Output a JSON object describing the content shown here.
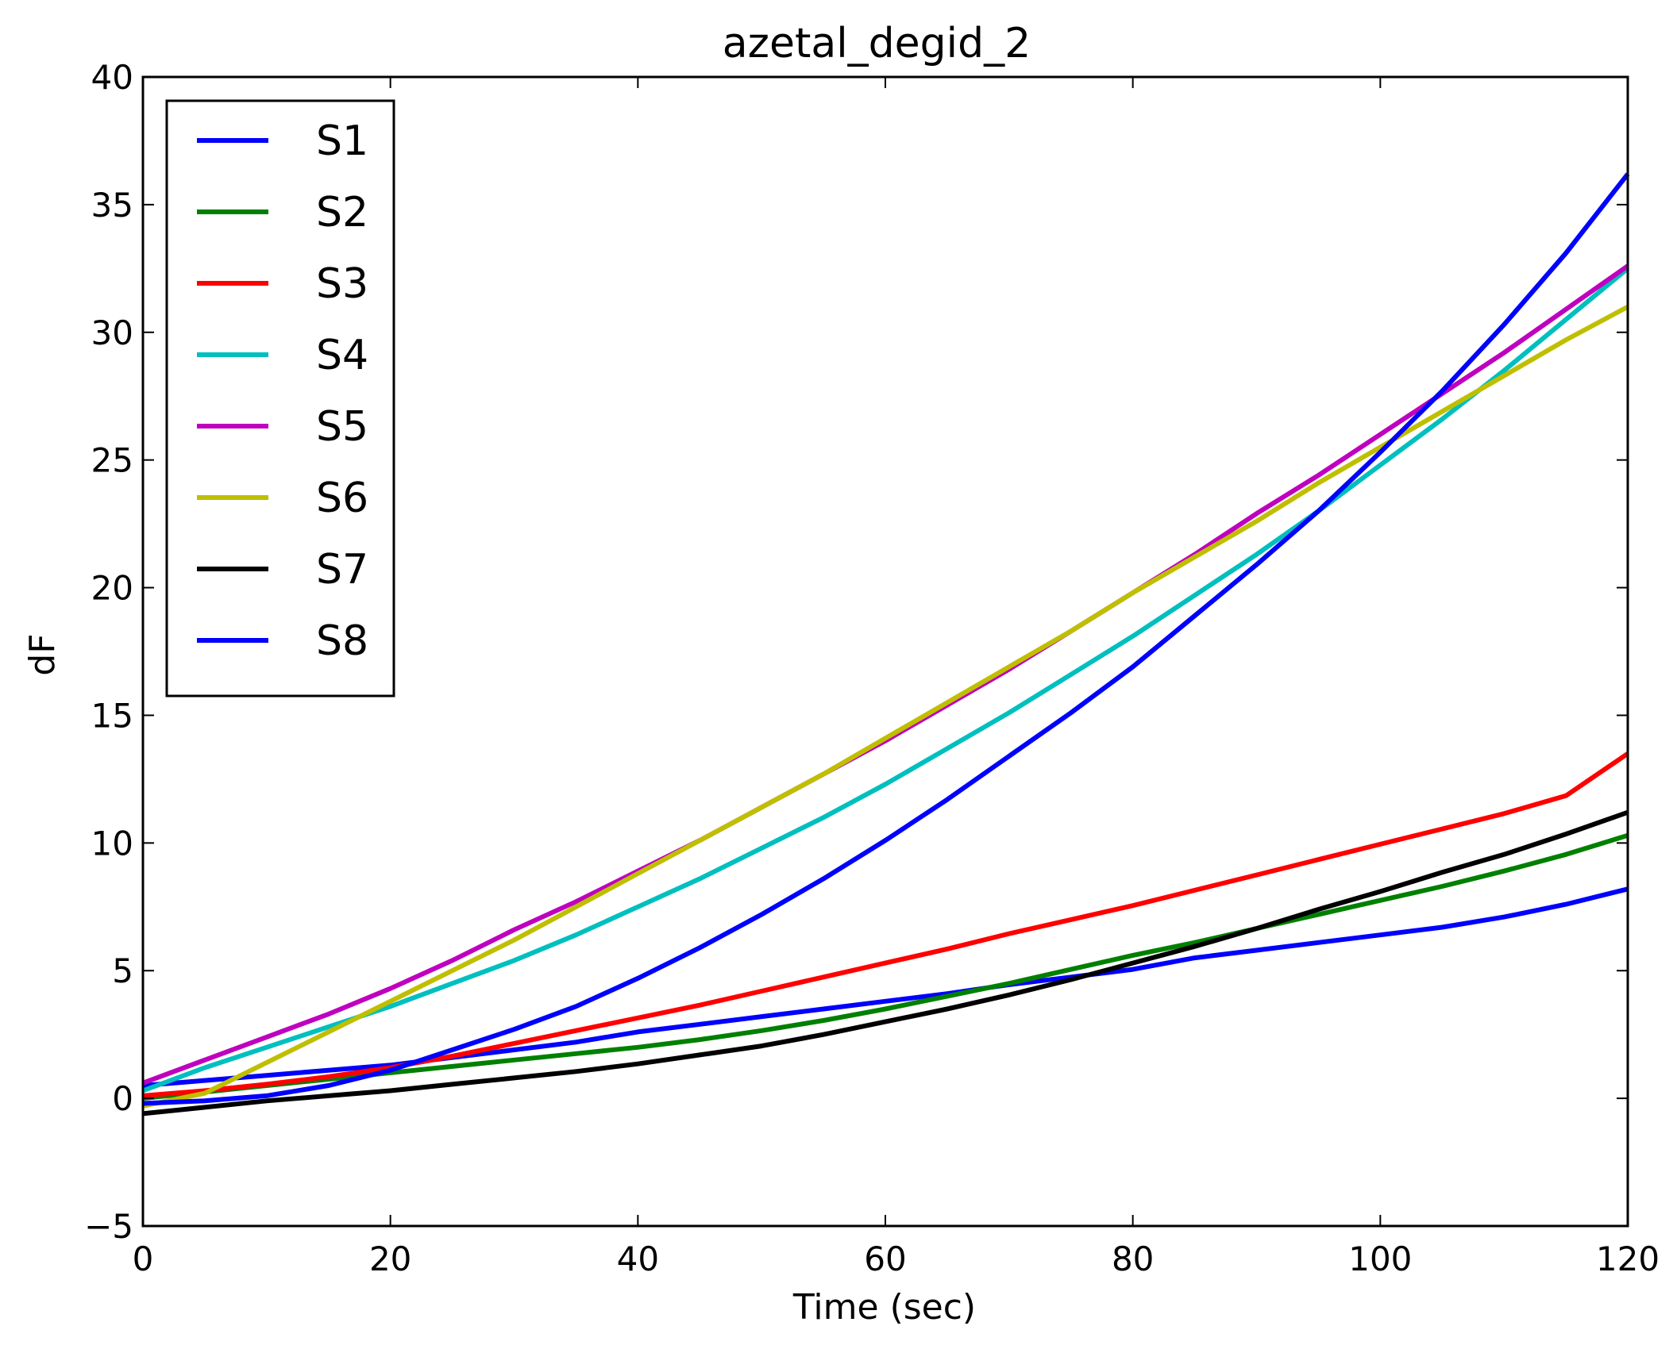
{
  "chart_data": {
    "type": "line",
    "title": "azetal_degid_2",
    "xlabel": "Time (sec)",
    "ylabel": "dF",
    "xlim": [
      0,
      120
    ],
    "ylim": [
      -5,
      40
    ],
    "xticks": [
      0,
      20,
      40,
      60,
      80,
      100,
      120
    ],
    "xtick_labels": [
      "0",
      "20",
      "40",
      "60",
      "80",
      "100",
      "120"
    ],
    "yticks": [
      -5,
      0,
      5,
      10,
      15,
      20,
      25,
      30,
      35,
      40
    ],
    "ytick_labels": [
      "−5",
      "0",
      "5",
      "10",
      "15",
      "20",
      "25",
      "30",
      "35",
      "40"
    ],
    "grid": false,
    "legend_position": "top-left",
    "x": [
      0,
      5,
      10,
      15,
      20,
      25,
      30,
      35,
      40,
      45,
      50,
      55,
      60,
      65,
      70,
      75,
      80,
      85,
      90,
      95,
      100,
      105,
      110,
      115,
      120
    ],
    "series": [
      {
        "name": "S1",
        "color": "#0000ff",
        "values": [
          0.5,
          0.7,
          0.9,
          1.1,
          1.3,
          1.6,
          1.9,
          2.2,
          2.6,
          2.9,
          3.2,
          3.5,
          3.8,
          4.1,
          4.45,
          4.75,
          5.05,
          5.5,
          5.8,
          6.1,
          6.4,
          6.7,
          7.1,
          7.6,
          8.2
        ]
      },
      {
        "name": "S2",
        "color": "#008000",
        "values": [
          0.0,
          0.25,
          0.5,
          0.75,
          1.0,
          1.25,
          1.5,
          1.75,
          2.0,
          2.3,
          2.65,
          3.05,
          3.5,
          4.0,
          4.5,
          5.05,
          5.6,
          6.1,
          6.65,
          7.2,
          7.75,
          8.3,
          8.9,
          9.55,
          10.3
        ]
      },
      {
        "name": "S3",
        "color": "#ff0000",
        "values": [
          0.1,
          0.3,
          0.55,
          0.85,
          1.2,
          1.65,
          2.15,
          2.65,
          3.15,
          3.65,
          4.2,
          4.75,
          5.3,
          5.85,
          6.45,
          7.0,
          7.55,
          8.15,
          8.75,
          9.35,
          9.95,
          10.55,
          11.15,
          11.85,
          13.5
        ]
      },
      {
        "name": "S4",
        "color": "#00bfbf",
        "values": [
          0.3,
          1.2,
          2.0,
          2.8,
          3.6,
          4.5,
          5.4,
          6.4,
          7.5,
          8.6,
          9.8,
          11.0,
          12.3,
          13.7,
          15.1,
          16.6,
          18.1,
          19.7,
          21.3,
          23.0,
          24.8,
          26.6,
          28.5,
          30.5,
          32.5
        ]
      },
      {
        "name": "S5",
        "color": "#bf00bf",
        "values": [
          0.6,
          1.5,
          2.4,
          3.3,
          4.3,
          5.4,
          6.6,
          7.7,
          8.9,
          10.1,
          11.4,
          12.7,
          14.0,
          15.4,
          16.8,
          18.3,
          19.8,
          21.3,
          22.9,
          24.4,
          26.0,
          27.6,
          29.2,
          30.9,
          32.6
        ]
      },
      {
        "name": "S6",
        "color": "#bfbf00",
        "values": [
          -0.3,
          0.2,
          1.4,
          2.6,
          3.8,
          5.0,
          6.2,
          7.5,
          8.8,
          10.1,
          11.4,
          12.7,
          14.1,
          15.5,
          16.9,
          18.3,
          19.8,
          21.2,
          22.6,
          24.1,
          25.5,
          26.9,
          28.3,
          29.7,
          31.0
        ]
      },
      {
        "name": "S7",
        "color": "#000000",
        "values": [
          -0.6,
          -0.35,
          -0.1,
          0.1,
          0.3,
          0.55,
          0.8,
          1.05,
          1.35,
          1.7,
          2.05,
          2.5,
          3.0,
          3.5,
          4.05,
          4.65,
          5.3,
          5.95,
          6.65,
          7.4,
          8.1,
          8.85,
          9.55,
          10.35,
          11.2
        ]
      },
      {
        "name": "S8",
        "color": "#0000ff",
        "values": [
          -0.2,
          -0.1,
          0.1,
          0.5,
          1.1,
          1.9,
          2.7,
          3.6,
          4.7,
          5.9,
          7.2,
          8.6,
          10.1,
          11.7,
          13.4,
          15.1,
          16.9,
          18.9,
          20.9,
          23.0,
          25.3,
          27.7,
          30.3,
          33.1,
          36.2
        ]
      }
    ]
  }
}
